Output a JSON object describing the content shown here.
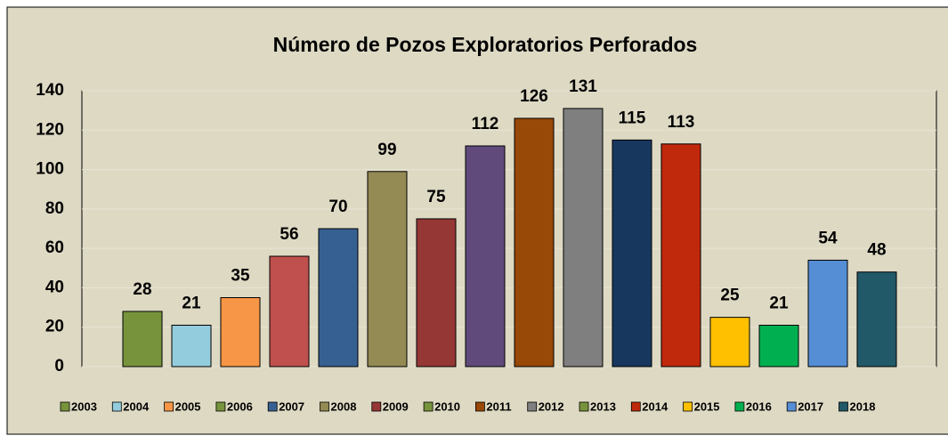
{
  "chart_data": {
    "type": "bar",
    "title": "Número de Pozos Exploratorios Perforados",
    "categories": [
      "2003",
      "2004",
      "2005",
      "2006",
      "2007",
      "2008",
      "2009",
      "2010",
      "2011",
      "2012",
      "2013",
      "2014",
      "2015",
      "2016",
      "2017",
      "2018"
    ],
    "values": [
      28,
      21,
      35,
      56,
      70,
      99,
      75,
      112,
      126,
      131,
      115,
      113,
      25,
      21,
      54,
      48
    ],
    "colors": [
      "#77933c",
      "#93cddd",
      "#f79646",
      "#c0504d",
      "#376092",
      "#948a54",
      "#953735",
      "#604a7b",
      "#984807",
      "#7f7f7f",
      "#17375e",
      "#c0290b",
      "#ffc000",
      "#00b050",
      "#558ed5",
      "#215968"
    ],
    "legend_colors": [
      "#77933c",
      "#93cddd",
      "#f79646",
      "#77933c",
      "#376092",
      "#948a54",
      "#953735",
      "#77933c",
      "#984807",
      "#7f7f7f",
      "#77933c",
      "#c0290b",
      "#ffc000",
      "#00b050",
      "#558ed5",
      "#215968"
    ],
    "ylim": [
      0,
      140
    ],
    "yticks": [
      0,
      20,
      40,
      60,
      80,
      100,
      120,
      140
    ],
    "grid": true,
    "legend": "bottom"
  }
}
